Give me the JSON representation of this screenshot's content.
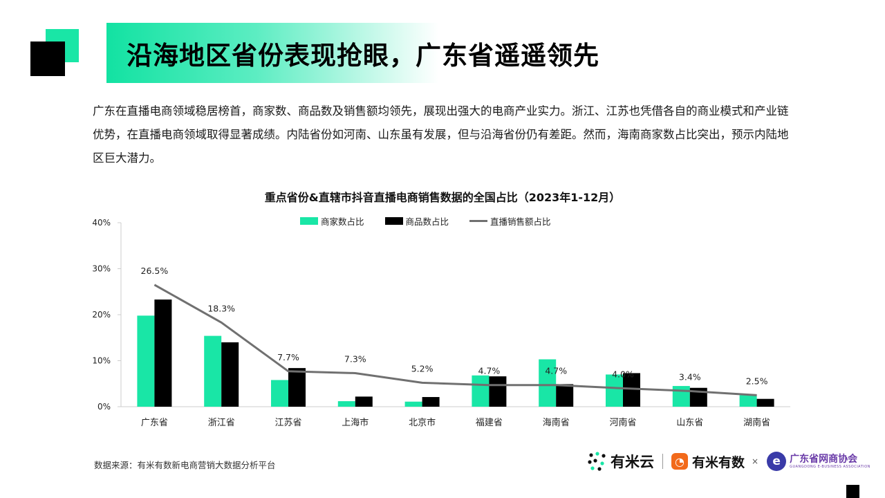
{
  "slide": {
    "title": "沿海地区省份表现抢眼，广东省遥遥领先",
    "intro": "广东在直播电商领域稳居榜首，商家数、商品数及销售额均领先，展现出强大的电商产业实力。浙江、江苏也凭借各自的商业模式和产业链优势，在直播电商领域取得显著成绩。内陆省份如河南、山东虽有发展，但与沿海省份仍有差距。然而，海南商家数占比突出，预示内陆地区巨大潜力。",
    "source": "数据来源：有米有数新电商营销大数据分析平台"
  },
  "colors": {
    "accent": "#19e6a6",
    "bar_merchants": "#19e6a6",
    "bar_products": "#000000",
    "line_sales": "#707070",
    "axis": "#cccccc"
  },
  "logos": {
    "youmiyun": "有米云",
    "youmiyoushu": "有米有数",
    "times": "×",
    "association": "广东省网商协会",
    "association_en": "GUANGDONG E-BUSINESS ASSOCIATION"
  },
  "chart_data": {
    "type": "bar",
    "title": "重点省份&直辖市抖音直播电商销售数据的全国占比（2023年1-12月）",
    "categories": [
      "广东省",
      "浙江省",
      "江苏省",
      "上海市",
      "北京市",
      "福建省",
      "海南省",
      "河南省",
      "山东省",
      "湖南省"
    ],
    "series": [
      {
        "name": "商家数占比",
        "type": "bar",
        "values": [
          19.8,
          15.4,
          5.8,
          1.2,
          1.1,
          6.8,
          10.3,
          7.0,
          4.5,
          2.5
        ]
      },
      {
        "name": "商品数占比",
        "type": "bar",
        "values": [
          23.3,
          14.0,
          8.4,
          2.2,
          2.1,
          6.6,
          4.9,
          7.3,
          4.1,
          1.7
        ]
      },
      {
        "name": "直播销售额占比",
        "type": "line",
        "values": [
          26.5,
          18.3,
          7.7,
          7.3,
          5.2,
          4.7,
          4.7,
          4.0,
          3.4,
          2.5
        ],
        "labels": [
          "26.5%",
          "18.3%",
          "7.7%",
          "7.3%",
          "5.2%",
          "4.7%",
          "4.7%",
          "4.0%",
          "3.4%",
          "2.5%"
        ]
      }
    ],
    "y_ticks": [
      "0%",
      "10%",
      "20%",
      "30%",
      "40%"
    ],
    "ylim": [
      0,
      40
    ],
    "legend_position": "top-center",
    "grid": false
  }
}
